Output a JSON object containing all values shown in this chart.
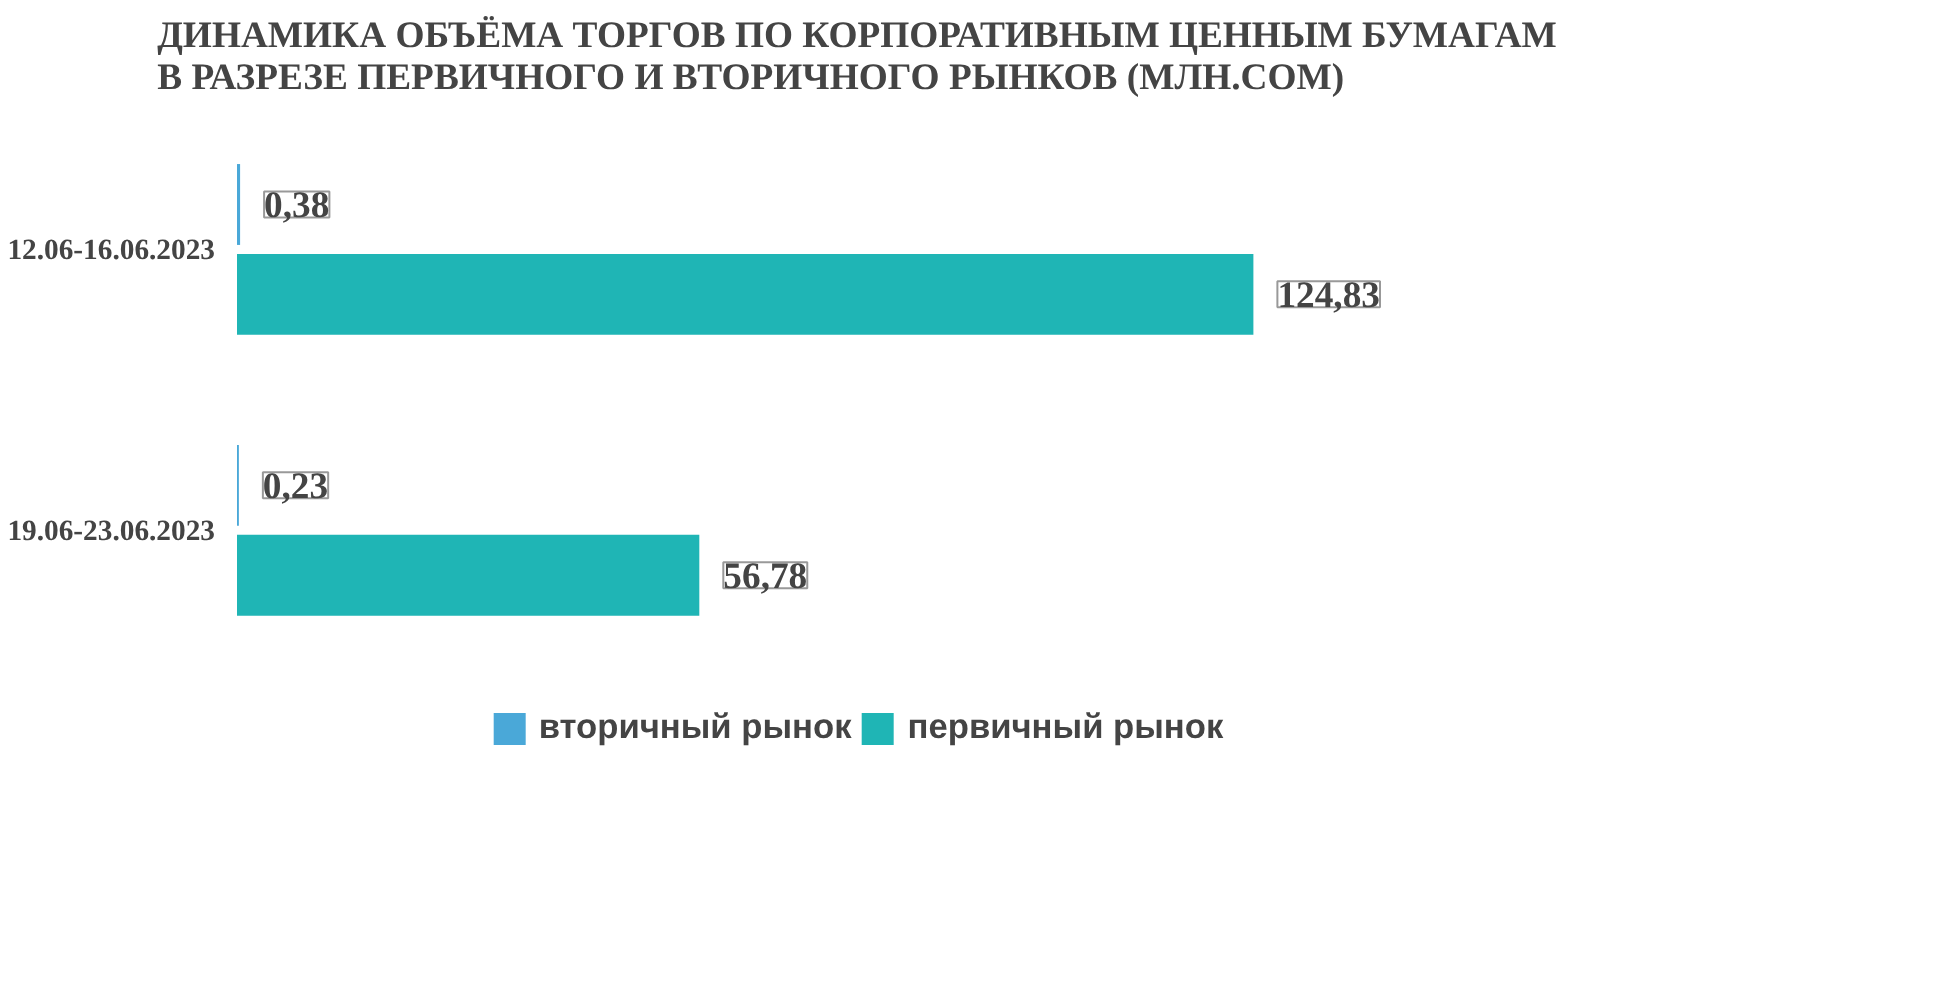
{
  "chart_data": {
    "type": "bar",
    "orientation": "horizontal",
    "title": "ДИНАМИКА ОБЪЁМА ТОРГОВ ПО КОРПОРАТИВНЫМ ЦЕННЫМ БУМАГАМ\nВ РАЗРЕЗЕ ПЕРВИЧНОГО И ВТОРИЧНОГО РЫНКОВ  (МЛН.СОМ)",
    "categories": [
      "12.06-16.06.2023",
      "19.06-23.06.2023"
    ],
    "series": [
      {
        "name": "вторичный рынок",
        "color": "#4aa8d8",
        "values": [
          0.38,
          0.23
        ],
        "value_labels": [
          "0,38",
          "0,23"
        ]
      },
      {
        "name": "первичный рынок",
        "color": "#1fb5b5",
        "values": [
          124.83,
          56.78
        ],
        "value_labels": [
          "124,83",
          "56,78"
        ]
      }
    ],
    "tick_labels": "y",
    "grid": false,
    "legend": "bottom"
  }
}
